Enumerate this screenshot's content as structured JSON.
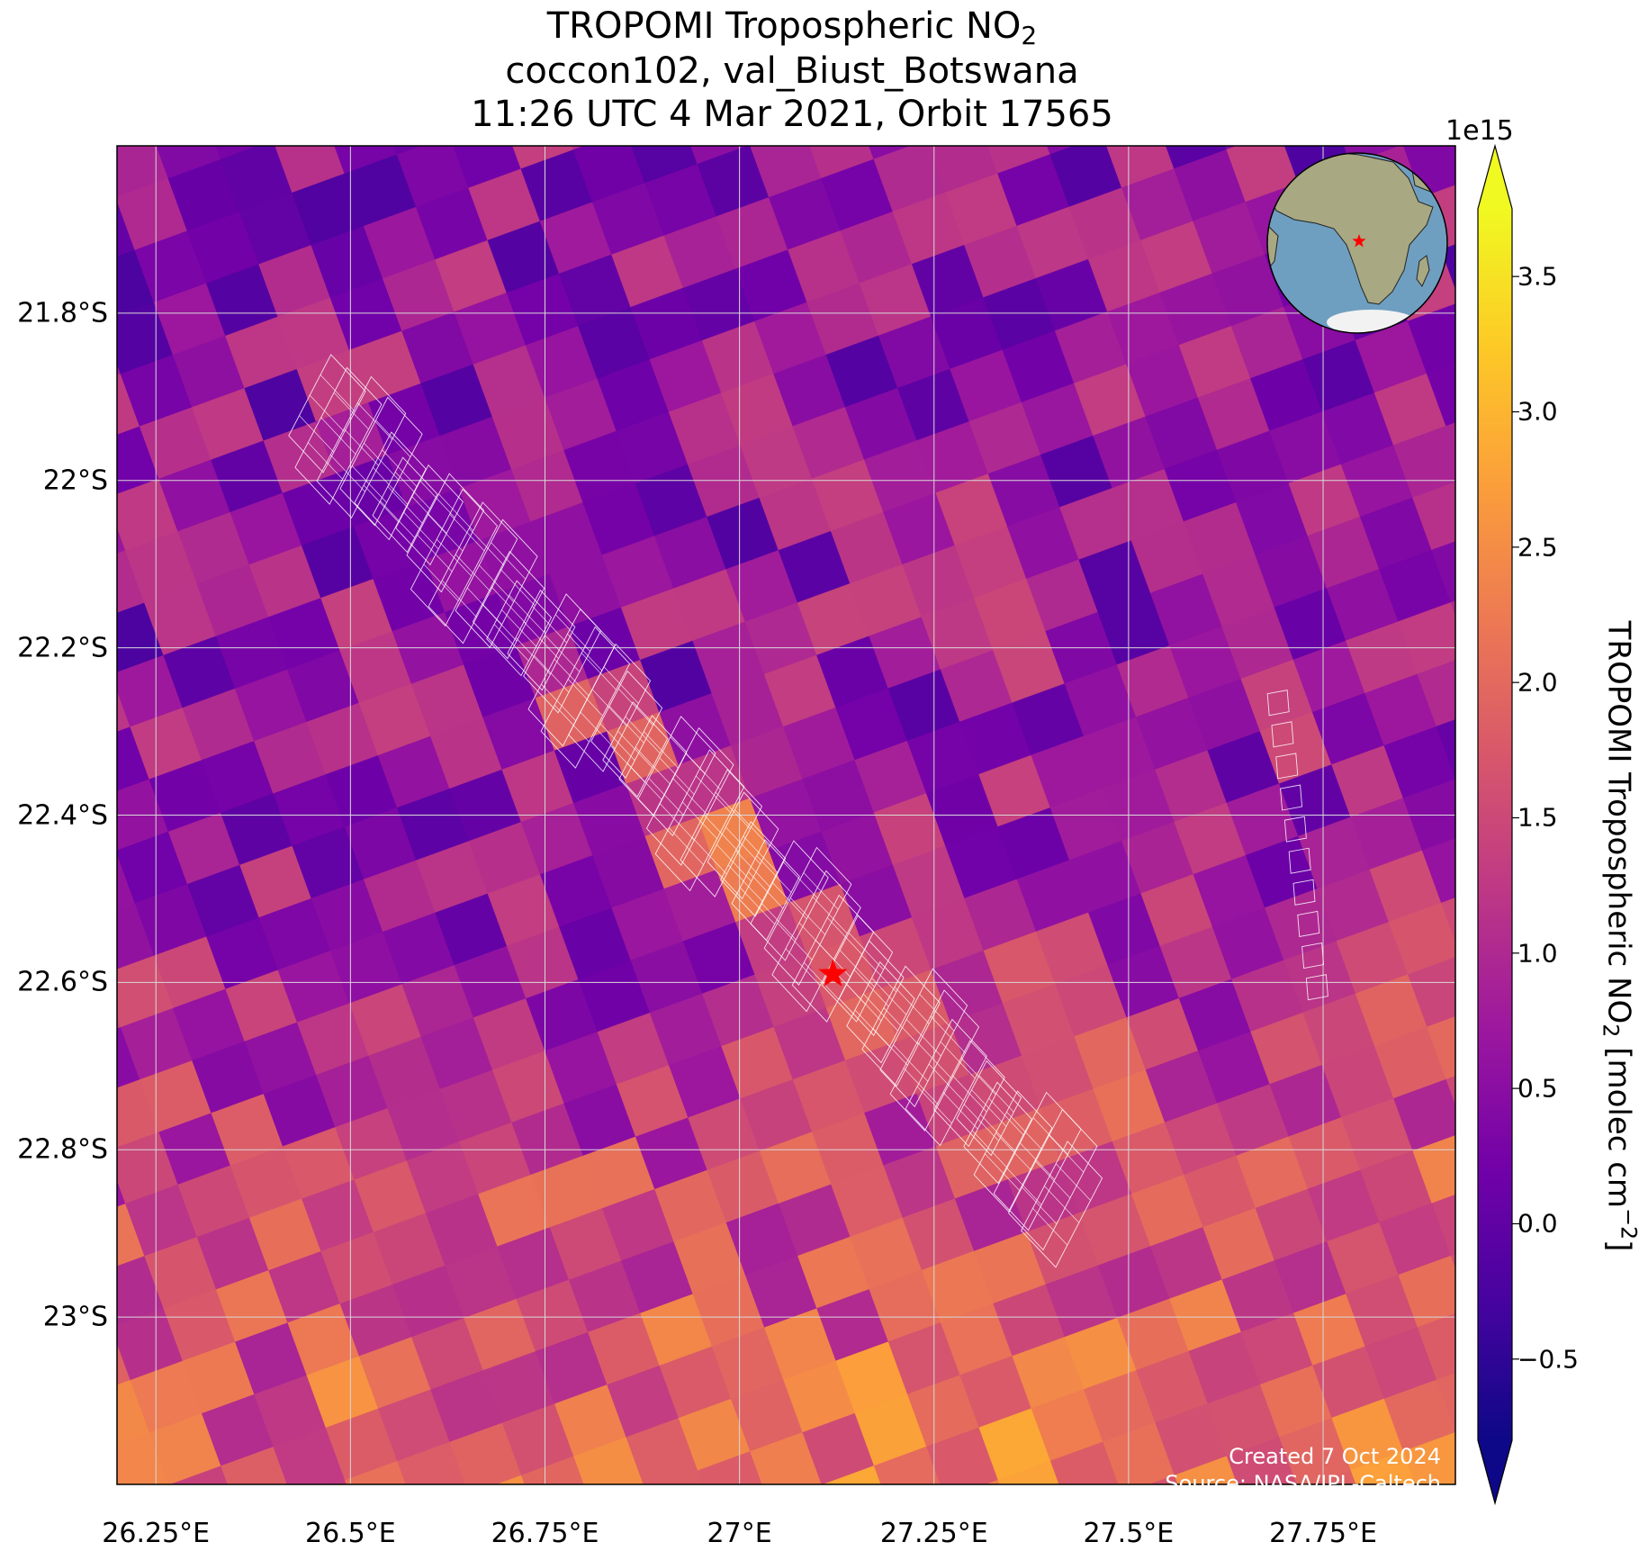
{
  "title": {
    "line1_prefix": "TROPOMI Tropospheric NO",
    "line1_sub": "2",
    "line2": "coccon102, val_Biust_Botswana",
    "line3": "11:26 UTC 4 Mar 2021, Orbit 17565"
  },
  "map": {
    "lon_range": [
      26.2,
      27.92
    ],
    "lat_range": [
      -23.2,
      -21.6
    ],
    "lat_ticks": [
      {
        "value": -21.8,
        "label": "21.8°S"
      },
      {
        "value": -22.0,
        "label": "22°S"
      },
      {
        "value": -22.2,
        "label": "22.2°S"
      },
      {
        "value": -22.4,
        "label": "22.4°S"
      },
      {
        "value": -22.6,
        "label": "22.6°S"
      },
      {
        "value": -22.8,
        "label": "22.8°S"
      },
      {
        "value": -23.0,
        "label": "23°S"
      }
    ],
    "lon_ticks": [
      {
        "value": 26.25,
        "label": "26.25°E"
      },
      {
        "value": 26.5,
        "label": "26.5°E"
      },
      {
        "value": 26.75,
        "label": "26.75°E"
      },
      {
        "value": 27.0,
        "label": "27°E"
      },
      {
        "value": 27.25,
        "label": "27.25°E"
      },
      {
        "value": 27.5,
        "label": "27.5°E"
      },
      {
        "value": 27.75,
        "label": "27.75°E"
      }
    ],
    "site": {
      "name": "val_Biust_Botswana",
      "lon": 27.12,
      "lat": -22.59,
      "marker_color": "#ff0000"
    },
    "gridline_color": "#d9d9d9",
    "footprint_color": "#ffffff"
  },
  "colorbar": {
    "label_prefix": "TROPOMI Tropospheric NO",
    "label_sub": "2",
    "label_mid": " [molec cm",
    "label_sup": "−2",
    "label_suffix": "]",
    "exponent": "1e15",
    "vmin": -0.8,
    "vmax": 3.75,
    "extend": "both",
    "colormap": "plasma",
    "ticks": [
      {
        "value": -0.5,
        "label": "−0.5"
      },
      {
        "value": 0.0,
        "label": "0.0"
      },
      {
        "value": 0.5,
        "label": "0.5"
      },
      {
        "value": 1.0,
        "label": "1.0"
      },
      {
        "value": 1.5,
        "label": "1.5"
      },
      {
        "value": 2.0,
        "label": "2.0"
      },
      {
        "value": 2.5,
        "label": "2.5"
      },
      {
        "value": 3.0,
        "label": "3.0"
      },
      {
        "value": 3.5,
        "label": "3.5"
      }
    ]
  },
  "inset_globe": {
    "ocean_color": "#6f9fc0",
    "land_color": "#a8a882",
    "marker_color": "#ff0000"
  },
  "credits": {
    "created": "Created 7 Oct 2024",
    "source": "Source: NASA/JPL-Caltech"
  }
}
